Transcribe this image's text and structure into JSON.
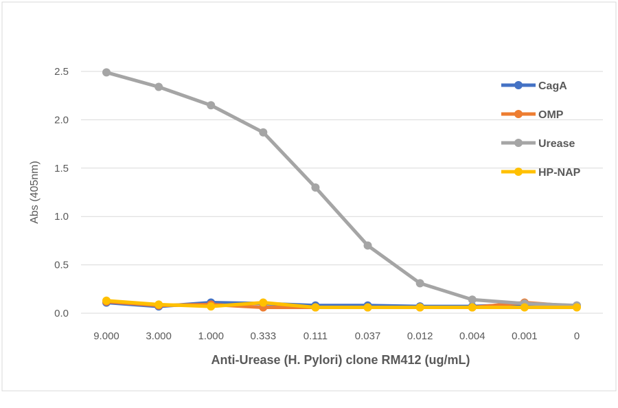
{
  "chart_data": {
    "type": "line",
    "title": "",
    "xlabel": "Anti-Urease (H. Pylori) clone RM412 (ug/mL)",
    "ylabel": "Abs (405nm)",
    "ylim": [
      0,
      2.5
    ],
    "yticks": [
      "0.0",
      "0.5",
      "1.0",
      "1.5",
      "2.0",
      "2.5"
    ],
    "grid": true,
    "legend": "top-right",
    "categories": [
      "9.000",
      "3.000",
      "1.000",
      "0.333",
      "0.111",
      "0.037",
      "0.012",
      "0.004",
      "0.001",
      "0"
    ],
    "series": [
      {
        "name": "CagA",
        "color": "#4472C4",
        "values": [
          0.11,
          0.07,
          0.11,
          0.1,
          0.08,
          0.08,
          0.07,
          0.07,
          0.09,
          0.08
        ]
      },
      {
        "name": "OMP",
        "color": "#ED7D31",
        "values": [
          0.12,
          0.08,
          0.09,
          0.06,
          0.06,
          0.06,
          0.06,
          0.06,
          0.11,
          0.07
        ]
      },
      {
        "name": "Urease",
        "color": "#A5A5A5",
        "values": [
          2.49,
          2.34,
          2.15,
          1.87,
          1.3,
          0.7,
          0.31,
          0.14,
          0.1,
          0.08
        ]
      },
      {
        "name": "HP-NAP",
        "color": "#FFC000",
        "values": [
          0.13,
          0.09,
          0.07,
          0.11,
          0.06,
          0.06,
          0.06,
          0.06,
          0.06,
          0.06
        ]
      }
    ]
  }
}
